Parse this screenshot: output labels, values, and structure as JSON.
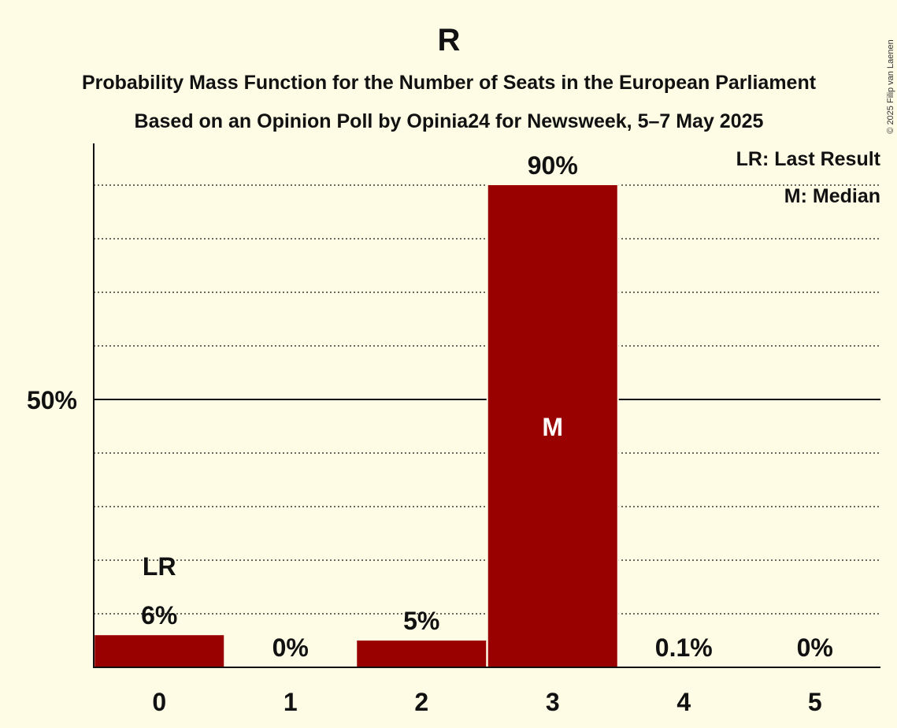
{
  "copyright": "© 2025 Filip van Laenen",
  "chart_data": {
    "type": "bar",
    "title": "R",
    "subtitle_lines": [
      "Probability Mass Function for the Number of Seats in the European Parliament",
      "Based on an Opinion Poll by Opinia24 for Newsweek, 5–7 May 2025"
    ],
    "categories": [
      "0",
      "1",
      "2",
      "3",
      "4",
      "5"
    ],
    "values": [
      6,
      0,
      5,
      90,
      0.1,
      0
    ],
    "value_labels": [
      "6%",
      "0%",
      "5%",
      "90%",
      "0.1%",
      "0%"
    ],
    "last_result_index": 0,
    "last_result_marker": "LR",
    "median_index": 3,
    "median_marker": "M",
    "y_tick_value": 50,
    "y_tick_label": "50%",
    "ylim": [
      0,
      98
    ],
    "grid": true,
    "legend_position": "top-right",
    "legend": [
      "LR: Last Result",
      "M: Median"
    ],
    "colors": {
      "bar": "#990000",
      "background": "#FFFCE6",
      "text": "#111111"
    }
  }
}
